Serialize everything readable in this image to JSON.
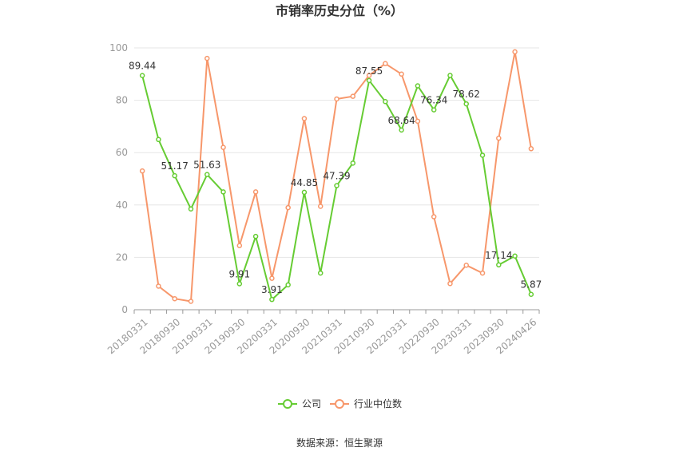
{
  "title": "市销率历史分位（%）",
  "source": "数据来源：恒生聚源",
  "chart_data": {
    "type": "line",
    "title": "市销率历史分位（%）",
    "ylim": [
      0,
      100
    ],
    "yticks": [
      0,
      20,
      40,
      60,
      80,
      100
    ],
    "grid": true,
    "legend_position": "bottom",
    "x": [
      "20180331",
      "20180630",
      "20180930",
      "20181231",
      "20190331",
      "20190630",
      "20190930",
      "20191231",
      "20200331",
      "20200630",
      "20200930",
      "20201231",
      "20210331",
      "20210630",
      "20210930",
      "20211231",
      "20220331",
      "20220630",
      "20220930",
      "20221231",
      "20230331",
      "20230630",
      "20230930",
      "20231231",
      "20240426"
    ],
    "x_tick_labels": [
      "20180331",
      "20180930",
      "20190331",
      "20190930",
      "20200331",
      "20200930",
      "20210331",
      "20210930",
      "20220331",
      "20220930",
      "20230331",
      "20230930",
      "20240426"
    ],
    "series": [
      {
        "name": "公司",
        "color": "#66cc33",
        "values": [
          89.44,
          65,
          51.17,
          38.5,
          51.63,
          45,
          9.91,
          28,
          3.91,
          9.5,
          44.85,
          14,
          47.39,
          56,
          87.55,
          79.5,
          68.64,
          85.5,
          76.34,
          89.5,
          78.62,
          59,
          17.14,
          20.5,
          5.87
        ],
        "labels": {
          "0": "89.44",
          "2": "51.17",
          "4": "51.63",
          "6": "9.91",
          "8": "3.91",
          "10": "44.85",
          "12": "47.39",
          "14": "87.55",
          "16": "68.64",
          "18": "76.34",
          "20": "78.62",
          "22": "17.14",
          "24": "5.87"
        }
      },
      {
        "name": "行业中位数",
        "color": "#f7976b",
        "values": [
          53,
          9,
          4.2,
          3.2,
          96,
          62,
          24.5,
          45,
          12,
          39,
          73,
          39.5,
          80.5,
          81.5,
          89.5,
          94,
          90,
          72,
          35.5,
          10,
          17,
          14,
          65.5,
          98.5,
          61.5
        ]
      }
    ]
  }
}
